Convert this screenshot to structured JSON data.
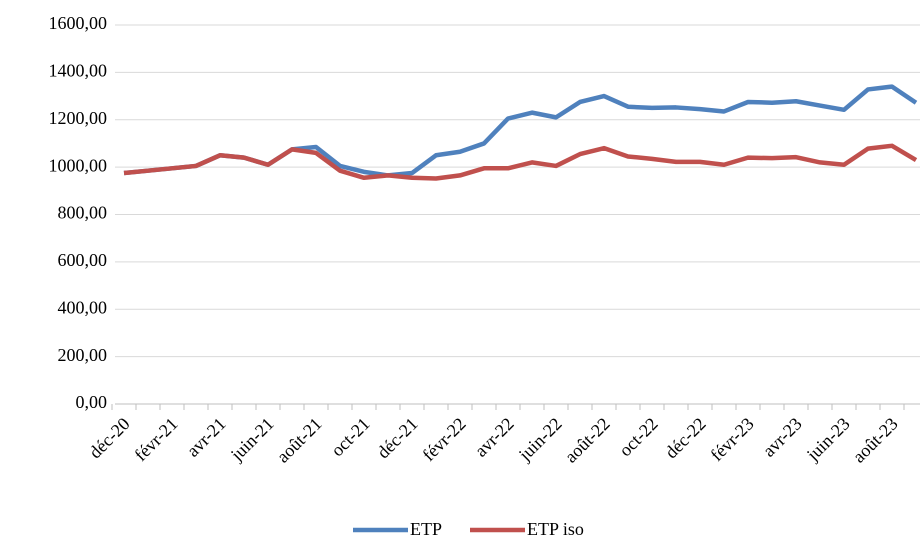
{
  "chart_data": {
    "type": "line",
    "categories": [
      "déc-20",
      null,
      "févr-21",
      null,
      "avr-21",
      null,
      "juin-21",
      null,
      "août-21",
      null,
      "oct-21",
      null,
      "déc-21",
      null,
      "févr-22",
      null,
      "avr-22",
      null,
      "juin-22",
      null,
      "août-22",
      null,
      "oct-22",
      null,
      "déc-22",
      null,
      "févr-23",
      null,
      "avr-23",
      null,
      "juin-23",
      null,
      "août-23",
      null
    ],
    "series": [
      {
        "name": "ETP",
        "color": "#4f81bd",
        "values": [
          975,
          985,
          995,
          1005,
          1050,
          1040,
          1010,
          1075,
          1085,
          1005,
          980,
          965,
          975,
          1050,
          1065,
          1100,
          1205,
          1230,
          1210,
          1275,
          1300,
          1255,
          1250,
          1252,
          1245,
          1235,
          1275,
          1272,
          1278,
          1260,
          1242,
          1328,
          1340,
          1272
        ]
      },
      {
        "name": "ETP iso",
        "color": "#c0504d",
        "values": [
          975,
          985,
          995,
          1005,
          1050,
          1040,
          1010,
          1075,
          1060,
          985,
          955,
          965,
          955,
          952,
          965,
          995,
          995,
          1020,
          1005,
          1055,
          1080,
          1045,
          1035,
          1022,
          1022,
          1010,
          1040,
          1038,
          1042,
          1020,
          1010,
          1078,
          1090,
          1030
        ]
      }
    ],
    "ylim": [
      0,
      1600
    ],
    "yticks": [
      {
        "value": 0,
        "label": "0,00"
      },
      {
        "value": 200,
        "label": "200,00"
      },
      {
        "value": 400,
        "label": "400,00"
      },
      {
        "value": 600,
        "label": "600,00"
      },
      {
        "value": 800,
        "label": "800,00"
      },
      {
        "value": 1000,
        "label": "1000,00"
      },
      {
        "value": 1200,
        "label": "1200,00"
      },
      {
        "value": 1400,
        "label": "1400,00"
      },
      {
        "value": 1600,
        "label": "1600,00"
      }
    ],
    "grid": true,
    "legend": "bottom"
  }
}
